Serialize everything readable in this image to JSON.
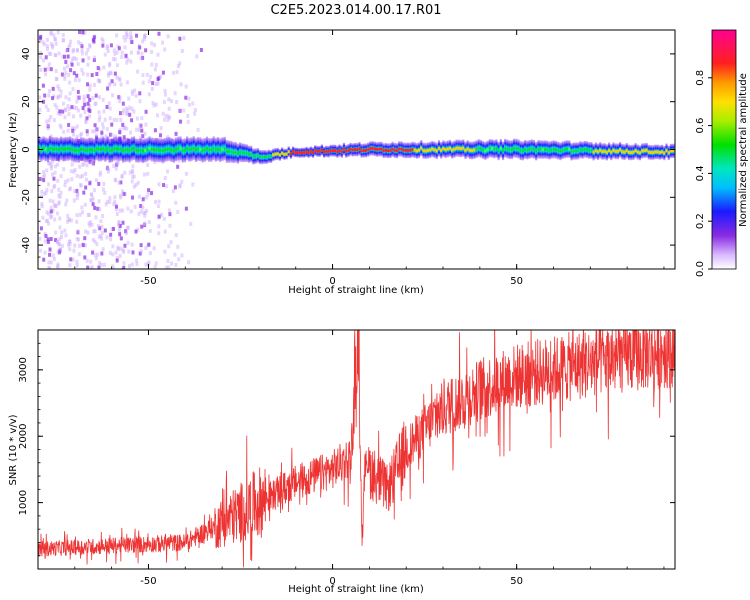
{
  "figure_title": "C2E5.2023.014.00.17.R01",
  "chart_data": [
    {
      "type": "heatmap",
      "title": "C2E5.2023.014.00.17.R01",
      "xlabel": "Height of straight line (km)",
      "ylabel": "Frequency (Hz)",
      "xlim": [
        -80,
        93
      ],
      "ylim": [
        -50,
        50
      ],
      "xticks": [
        -50,
        0,
        50
      ],
      "xtick_labels": [
        "-50",
        "0",
        "50"
      ],
      "yticks": [
        -40,
        -20,
        0,
        20,
        40
      ],
      "ytick_labels": [
        "-40",
        "-20",
        "0",
        "20",
        "40"
      ],
      "colorbar": {
        "label": "Normalized spectral amplitude",
        "range": [
          0,
          1
        ],
        "ticks": [
          0.0,
          0.2,
          0.4,
          0.6,
          0.8
        ],
        "tick_labels": [
          "0.0",
          "0.2",
          "0.4",
          "0.6",
          "0.8"
        ],
        "colormap": "rainbow (white-violet-blue-cyan-green-yellow-orange-red-pink)"
      },
      "description_points": [
        {
          "x": -80,
          "freq_center": 0,
          "freq_halfwidth": 5,
          "amp": 0.5
        },
        {
          "x": -30,
          "freq_center": 0,
          "freq_halfwidth": 5,
          "amp": 0.5
        },
        {
          "x": -20,
          "freq_center": -3,
          "freq_halfwidth": 3,
          "amp": 0.6
        },
        {
          "x": -10,
          "freq_center": -1,
          "freq_halfwidth": 2,
          "amp": 0.9
        },
        {
          "x": 10,
          "freq_center": 0,
          "freq_halfwidth": 3,
          "amp": 0.95
        },
        {
          "x": 50,
          "freq_center": 0,
          "freq_halfwidth": 4,
          "amp": 0.6
        },
        {
          "x": 90,
          "freq_center": -1,
          "freq_halfwidth": 3,
          "amp": 0.8
        }
      ],
      "scatter_noise_region_x": [
        -80,
        -35
      ]
    },
    {
      "type": "line",
      "xlabel": "Height of straight line (km)",
      "ylabel": "SNR (10 * v/v)",
      "xlim": [
        -80,
        93
      ],
      "ylim": [
        0,
        3600
      ],
      "xticks": [
        -50,
        0,
        50
      ],
      "xtick_labels": [
        "-50",
        "0",
        "50"
      ],
      "yticks": [
        1000,
        2000,
        3000
      ],
      "ytick_labels": [
        "1000",
        "2000",
        "3000"
      ],
      "series": [
        {
          "name": "SNR",
          "color": "#ee3333",
          "trend_x": [
            -80,
            -60,
            -40,
            -30,
            -20,
            -10,
            0,
            5,
            7,
            8,
            9,
            10,
            15,
            20,
            30,
            40,
            50,
            60,
            70,
            80,
            93
          ],
          "trend_y": [
            300,
            350,
            400,
            700,
            1000,
            1300,
            1500,
            1700,
            3500,
            400,
            1800,
            1500,
            1200,
            1800,
            2400,
            2700,
            2900,
            3000,
            3100,
            3200,
            3300
          ]
        }
      ]
    }
  ]
}
